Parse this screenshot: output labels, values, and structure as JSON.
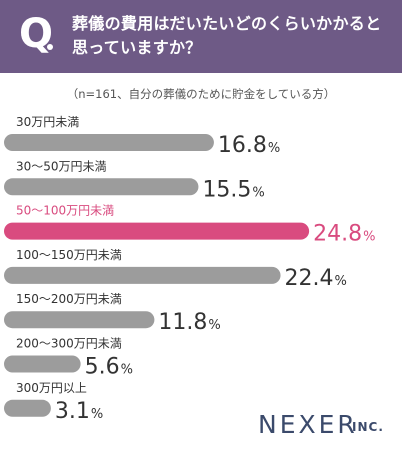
{
  "header": {
    "q_mark": "Q",
    "title_lines": [
      "葬儀の費用はだいたいどのくらいかかると",
      "思っていますか？"
    ]
  },
  "note": "（n=161、自分の葬儀のために貯金をしている方）",
  "brand": {
    "name": "NEXER",
    "suffix": "INC."
  },
  "colors": {
    "header": "#6e5a86",
    "bar": "#9c9c9c",
    "highlight": "#d94b7f",
    "text": "#333333"
  },
  "chart_data": {
    "type": "bar",
    "orientation": "horizontal",
    "unit": "%",
    "categories": [
      "30万円未満",
      "30～50万円未満",
      "50～100万円未満",
      "100～150万円未満",
      "150～200万円未満",
      "200～300万円未満",
      "300万円以上"
    ],
    "values": [
      16.8,
      15.5,
      24.8,
      22.4,
      11.8,
      5.6,
      3.1
    ],
    "value_labels": [
      "16.8",
      "15.5",
      "24.8",
      "22.4",
      "11.8",
      "5.6",
      "3.1"
    ],
    "highlight_index": 2
  }
}
